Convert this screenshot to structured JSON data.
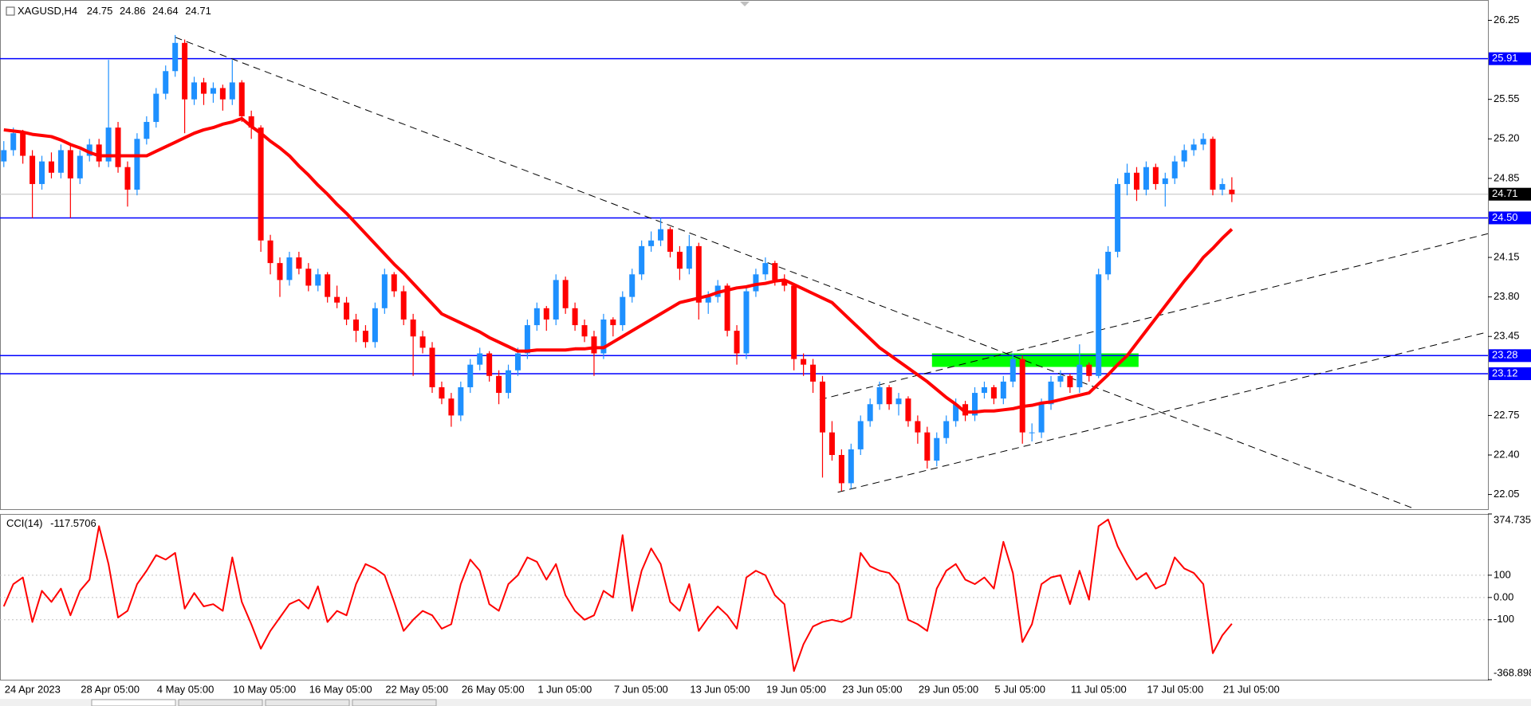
{
  "chart_data": {
    "type": "candlestick",
    "title": "XAGUSD,H4",
    "categories": [
      "24 Apr 2023",
      null,
      null,
      null,
      null,
      null,
      null,
      null,
      "28 Apr 05:00",
      null,
      null,
      null,
      null,
      null,
      null,
      null,
      "4 May 05:00",
      null,
      null,
      null,
      null,
      null,
      null,
      null,
      "10 May 05:00",
      null,
      null,
      null,
      null,
      null,
      null,
      null,
      "16 May 05:00",
      null,
      null,
      null,
      null,
      null,
      null,
      null,
      "22 May 05:00",
      null,
      null,
      null,
      null,
      null,
      null,
      null,
      "26 May 05:00",
      null,
      null,
      null,
      null,
      null,
      null,
      null,
      "1 Jun 05:00",
      null,
      null,
      null,
      null,
      null,
      null,
      null,
      "7 Jun 05:00",
      null,
      null,
      null,
      null,
      null,
      null,
      null,
      "13 Jun 05:00",
      null,
      null,
      null,
      null,
      null,
      null,
      null,
      "19 Jun 05:00",
      null,
      null,
      null,
      null,
      null,
      null,
      null,
      "23 Jun 05:00",
      null,
      null,
      null,
      null,
      null,
      null,
      null,
      "29 Jun 05:00",
      null,
      null,
      null,
      null,
      null,
      null,
      null,
      "5 Jul 05:00",
      null,
      null,
      null,
      null,
      null,
      null,
      null,
      "11 Jul 05:00",
      null,
      null,
      null,
      null,
      null,
      null,
      null,
      "17 Jul 05:00",
      null,
      null,
      null,
      null,
      null,
      null,
      null,
      "21 Jul 05:00",
      null
    ],
    "candles": [
      [
        25.0,
        25.18,
        24.95,
        25.1
      ],
      [
        25.1,
        25.3,
        25.05,
        25.25
      ],
      [
        25.25,
        25.28,
        24.98,
        25.05
      ],
      [
        25.05,
        25.1,
        24.5,
        24.8
      ],
      [
        24.8,
        25.05,
        24.75,
        25.0
      ],
      [
        25.0,
        25.08,
        24.85,
        24.9
      ],
      [
        24.9,
        25.15,
        24.85,
        25.1
      ],
      [
        25.1,
        25.14,
        24.5,
        24.85
      ],
      [
        24.85,
        25.1,
        24.8,
        25.05
      ],
      [
        25.05,
        25.2,
        25.0,
        25.15
      ],
      [
        25.15,
        25.2,
        24.95,
        25.0
      ],
      [
        25.0,
        25.9,
        24.95,
        25.3
      ],
      [
        25.3,
        25.35,
        24.9,
        24.95
      ],
      [
        24.95,
        25.0,
        24.6,
        24.75
      ],
      [
        24.75,
        25.25,
        24.7,
        25.2
      ],
      [
        25.2,
        25.4,
        25.15,
        25.35
      ],
      [
        25.35,
        25.65,
        25.3,
        25.6
      ],
      [
        25.6,
        25.85,
        25.55,
        25.8
      ],
      [
        25.8,
        26.12,
        25.75,
        26.05
      ],
      [
        26.05,
        26.08,
        25.25,
        25.55
      ],
      [
        25.55,
        25.75,
        25.5,
        25.7
      ],
      [
        25.7,
        25.74,
        25.5,
        25.6
      ],
      [
        25.6,
        25.7,
        25.52,
        25.65
      ],
      [
        25.65,
        25.68,
        25.45,
        25.55
      ],
      [
        25.55,
        25.9,
        25.5,
        25.7
      ],
      [
        25.7,
        25.72,
        25.35,
        25.4
      ],
      [
        25.4,
        25.45,
        25.2,
        25.3
      ],
      [
        25.3,
        25.32,
        24.2,
        24.3
      ],
      [
        24.3,
        24.35,
        24.0,
        24.1
      ],
      [
        24.1,
        24.15,
        23.8,
        23.95
      ],
      [
        23.95,
        24.2,
        23.9,
        24.15
      ],
      [
        24.15,
        24.2,
        24.0,
        24.05
      ],
      [
        24.05,
        24.1,
        23.85,
        23.9
      ],
      [
        23.9,
        24.05,
        23.85,
        24.0
      ],
      [
        24.0,
        24.02,
        23.75,
        23.8
      ],
      [
        23.8,
        23.9,
        23.7,
        23.75
      ],
      [
        23.75,
        23.8,
        23.55,
        23.6
      ],
      [
        23.6,
        23.65,
        23.4,
        23.5
      ],
      [
        23.5,
        23.55,
        23.35,
        23.4
      ],
      [
        23.4,
        23.75,
        23.35,
        23.7
      ],
      [
        23.7,
        24.05,
        23.65,
        24.0
      ],
      [
        24.0,
        24.02,
        23.8,
        23.85
      ],
      [
        23.85,
        23.9,
        23.55,
        23.6
      ],
      [
        23.6,
        23.65,
        23.1,
        23.45
      ],
      [
        23.45,
        23.5,
        23.3,
        23.35
      ],
      [
        23.35,
        23.4,
        22.95,
        23.0
      ],
      [
        23.0,
        23.05,
        22.85,
        22.9
      ],
      [
        22.9,
        22.95,
        22.65,
        22.75
      ],
      [
        22.75,
        23.05,
        22.7,
        23.0
      ],
      [
        23.0,
        23.25,
        22.95,
        23.2
      ],
      [
        23.2,
        23.35,
        23.15,
        23.3
      ],
      [
        23.3,
        23.32,
        23.05,
        23.1
      ],
      [
        23.1,
        23.15,
        22.85,
        22.95
      ],
      [
        22.95,
        23.2,
        22.9,
        23.15
      ],
      [
        23.15,
        23.35,
        23.1,
        23.3
      ],
      [
        23.3,
        23.6,
        23.25,
        23.55
      ],
      [
        23.55,
        23.75,
        23.5,
        23.7
      ],
      [
        23.7,
        23.72,
        23.5,
        23.6
      ],
      [
        23.6,
        24.0,
        23.55,
        23.95
      ],
      [
        23.95,
        23.98,
        23.65,
        23.7
      ],
      [
        23.7,
        23.75,
        23.5,
        23.55
      ],
      [
        23.55,
        23.6,
        23.4,
        23.45
      ],
      [
        23.45,
        23.5,
        23.1,
        23.3
      ],
      [
        23.3,
        23.65,
        23.25,
        23.6
      ],
      [
        23.6,
        23.62,
        23.45,
        23.55
      ],
      [
        23.55,
        23.85,
        23.5,
        23.8
      ],
      [
        23.8,
        24.05,
        23.75,
        24.0
      ],
      [
        24.0,
        24.3,
        23.95,
        24.25
      ],
      [
        24.25,
        24.38,
        24.2,
        24.3
      ],
      [
        24.3,
        24.5,
        24.25,
        24.4
      ],
      [
        24.4,
        24.42,
        24.15,
        24.2
      ],
      [
        24.2,
        24.25,
        23.95,
        24.05
      ],
      [
        24.05,
        24.35,
        24.0,
        24.25
      ],
      [
        24.25,
        24.28,
        23.6,
        23.75
      ],
      [
        23.75,
        23.85,
        23.65,
        23.8
      ],
      [
        23.8,
        23.95,
        23.75,
        23.9
      ],
      [
        23.9,
        23.92,
        23.45,
        23.5
      ],
      [
        23.5,
        23.55,
        23.2,
        23.3
      ],
      [
        23.3,
        23.9,
        23.25,
        23.85
      ],
      [
        23.85,
        24.05,
        23.8,
        24.0
      ],
      [
        24.0,
        24.15,
        23.95,
        24.1
      ],
      [
        24.1,
        24.12,
        23.9,
        23.95
      ],
      [
        23.95,
        24.0,
        23.85,
        23.9
      ],
      [
        23.9,
        23.92,
        23.15,
        23.25
      ],
      [
        23.25,
        23.3,
        23.1,
        23.2
      ],
      [
        23.2,
        23.25,
        22.95,
        23.05
      ],
      [
        23.05,
        23.1,
        22.2,
        22.6
      ],
      [
        22.6,
        22.7,
        22.35,
        22.4
      ],
      [
        22.4,
        22.45,
        22.08,
        22.15
      ],
      [
        22.15,
        22.5,
        22.1,
        22.45
      ],
      [
        22.45,
        22.75,
        22.4,
        22.7
      ],
      [
        22.7,
        22.9,
        22.65,
        22.85
      ],
      [
        22.85,
        23.05,
        22.8,
        23.0
      ],
      [
        23.0,
        23.02,
        22.8,
        22.85
      ],
      [
        22.85,
        22.95,
        22.75,
        22.9
      ],
      [
        22.9,
        22.92,
        22.65,
        22.7
      ],
      [
        22.7,
        22.75,
        22.5,
        22.6
      ],
      [
        22.6,
        22.65,
        22.28,
        22.35
      ],
      [
        22.35,
        22.6,
        22.3,
        22.55
      ],
      [
        22.55,
        22.75,
        22.5,
        22.7
      ],
      [
        22.7,
        22.9,
        22.65,
        22.85
      ],
      [
        22.85,
        22.88,
        22.7,
        22.75
      ],
      [
        22.75,
        23.0,
        22.7,
        22.95
      ],
      [
        22.95,
        23.05,
        22.9,
        23.0
      ],
      [
        23.0,
        23.02,
        22.85,
        22.9
      ],
      [
        22.9,
        23.1,
        22.85,
        23.05
      ],
      [
        23.05,
        23.3,
        23.0,
        23.25
      ],
      [
        23.25,
        23.28,
        22.5,
        22.6
      ],
      [
        22.6,
        22.68,
        22.52,
        22.6
      ],
      [
        22.6,
        22.9,
        22.55,
        22.85
      ],
      [
        22.85,
        23.1,
        22.8,
        23.05
      ],
      [
        23.05,
        23.15,
        23.0,
        23.1
      ],
      [
        23.1,
        23.12,
        22.95,
        23.0
      ],
      [
        23.0,
        23.38,
        22.95,
        23.2
      ],
      [
        23.2,
        23.22,
        23.05,
        23.1
      ],
      [
        23.1,
        24.05,
        23.08,
        24.0
      ],
      [
        24.0,
        24.25,
        23.95,
        24.2
      ],
      [
        24.2,
        24.85,
        24.15,
        24.8
      ],
      [
        24.8,
        24.98,
        24.7,
        24.9
      ],
      [
        24.9,
        24.95,
        24.65,
        24.75
      ],
      [
        24.75,
        25.0,
        24.7,
        24.95
      ],
      [
        24.95,
        24.98,
        24.75,
        24.8
      ],
      [
        24.8,
        24.9,
        24.6,
        24.85
      ],
      [
        24.85,
        25.05,
        24.8,
        25.0
      ],
      [
        25.0,
        25.15,
        24.95,
        25.1
      ],
      [
        25.1,
        25.2,
        25.05,
        25.15
      ],
      [
        25.15,
        25.25,
        25.1,
        25.2
      ],
      [
        25.2,
        25.22,
        24.7,
        24.75
      ],
      [
        24.75,
        24.85,
        24.7,
        24.8
      ],
      [
        24.75,
        24.86,
        24.64,
        24.71
      ]
    ],
    "up_color": "#1e90ff",
    "down_color": "#ff0000",
    "xlim": [
      -0.4,
      155.9
    ],
    "ylim": [
      21.92,
      26.43
    ],
    "yticks": [
      26.25,
      25.55,
      {
        "value": 25.2,
        "label": "25.20"
      },
      24.85,
      24.15,
      {
        "value": 23.8,
        "label": "23.80"
      },
      23.45,
      22.75,
      {
        "value": 22.4,
        "label": "22.40"
      },
      22.05
    ],
    "levels": {
      "color": "#0000ff",
      "values": [
        25.91,
        {
          "value": 24.5,
          "label": "24.50"
        },
        23.28,
        23.12
      ]
    },
    "ma": {
      "color": "#ff0000",
      "values": [
        25.28,
        25.27,
        25.26,
        25.24,
        25.23,
        25.22,
        25.19,
        25.15,
        25.12,
        25.08,
        25.05,
        25.05,
        25.05,
        25.05,
        25.05,
        25.05,
        25.09,
        25.13,
        25.17,
        25.21,
        25.25,
        25.28,
        25.3,
        25.33,
        25.35,
        25.38,
        25.31,
        25.25,
        25.18,
        25.12,
        25.05,
        24.96,
        24.88,
        24.79,
        24.71,
        24.62,
        24.54,
        24.45,
        24.36,
        24.27,
        24.18,
        24.09,
        24.01,
        23.92,
        23.83,
        23.74,
        23.65,
        23.61,
        23.57,
        23.53,
        23.49,
        23.44,
        23.4,
        23.36,
        23.32,
        23.32,
        23.33,
        23.33,
        23.33,
        23.33,
        23.34,
        23.34,
        23.35,
        23.35,
        23.4,
        23.45,
        23.5,
        23.55,
        23.6,
        23.65,
        23.7,
        23.75,
        23.77,
        23.79,
        23.81,
        23.84,
        23.86,
        23.88,
        23.89,
        23.91,
        23.92,
        23.94,
        23.95,
        23.91,
        23.87,
        23.83,
        23.79,
        23.75,
        23.67,
        23.59,
        23.51,
        23.43,
        23.35,
        23.29,
        23.23,
        23.17,
        23.11,
        23.05,
        22.98,
        22.91,
        22.85,
        22.78,
        22.78,
        22.79,
        22.79,
        22.8,
        22.81,
        22.83,
        22.84,
        22.86,
        22.87,
        22.89,
        22.91,
        22.93,
        22.95,
        23.03,
        23.11,
        23.2,
        23.28,
        23.39,
        23.5,
        23.61,
        23.72,
        23.83,
        23.94,
        24.04,
        24.15,
        24.23,
        24.32,
        24.4
      ]
    },
    "trendlines": [
      {
        "x": [
          18,
          148.3
        ],
        "values": [
          26.1,
          21.92
        ]
      },
      {
        "x": [
          87.6,
          155.9
        ],
        "values": [
          22.07,
          23.49
        ]
      },
      {
        "x": [
          85.7,
          155.9
        ],
        "values": [
          22.89,
          24.36
        ]
      }
    ],
    "zone": {
      "x": [
        97.5,
        119.2
      ],
      "values": [
        23.18,
        23.3
      ],
      "color": "#00ff00"
    },
    "cci": {
      "name": "CCI(14)",
      "color": "#ff0000",
      "ylim": [
        -368.898,
        374.735
      ],
      "yticks": [
        374.735,
        100,
        {
          "value": 0,
          "label": "0.00"
        },
        -100,
        -368.898
      ],
      "values": [
        -40,
        60,
        90,
        -110,
        30,
        -20,
        40,
        -80,
        30,
        80,
        320,
        150,
        -90,
        -60,
        60,
        120,
        190,
        170,
        200,
        -50,
        20,
        -40,
        -30,
        -60,
        180,
        -20,
        -120,
        -230,
        -150,
        -90,
        -30,
        -10,
        -50,
        50,
        -110,
        -60,
        -80,
        60,
        150,
        130,
        100,
        -20,
        -150,
        -100,
        -60,
        -80,
        -140,
        -120,
        60,
        170,
        120,
        -30,
        -60,
        60,
        100,
        180,
        160,
        80,
        150,
        10,
        -60,
        -100,
        -80,
        30,
        0,
        280,
        -60,
        120,
        220,
        150,
        -20,
        -60,
        60,
        -150,
        -90,
        -40,
        -80,
        -140,
        90,
        120,
        100,
        10,
        -30,
        -330,
        -210,
        -130,
        -110,
        -100,
        -110,
        -90,
        200,
        140,
        120,
        110,
        60,
        -100,
        -120,
        -150,
        40,
        120,
        150,
        80,
        60,
        90,
        40,
        250,
        110,
        -200,
        -120,
        60,
        90,
        100,
        -30,
        120,
        -10,
        320,
        350,
        230,
        150,
        80,
        110,
        40,
        60,
        180,
        130,
        110,
        60,
        -250,
        -170,
        -117.5706
      ]
    }
  }
}
